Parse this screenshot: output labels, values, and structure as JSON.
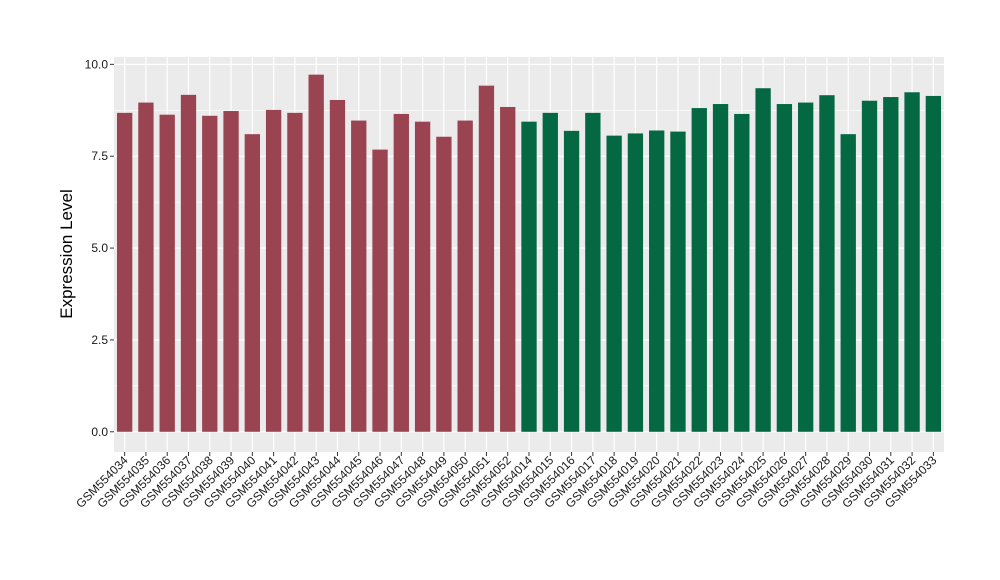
{
  "chart_data": {
    "type": "bar",
    "title": "",
    "xlabel": "",
    "ylabel": "Expression Level",
    "ylim": [
      -0.55,
      10.2
    ],
    "yticks": [
      0.0,
      2.5,
      5.0,
      7.5,
      10.0
    ],
    "ytick_labels": [
      "0.0",
      "2.5",
      "5.0",
      "7.5",
      "10.0"
    ],
    "grid": true,
    "legend": "none",
    "background_color": "#ebebeb",
    "grid_color": "#ffffff",
    "categories": [
      "GSM554034",
      "GSM554035",
      "GSM554036",
      "GSM554037",
      "GSM554038",
      "GSM554039",
      "GSM554040",
      "GSM554041",
      "GSM554042",
      "GSM554043",
      "GSM554044",
      "GSM554045",
      "GSM554046",
      "GSM554047",
      "GSM554048",
      "GSM554049",
      "GSM554050",
      "GSM554051",
      "GSM554052",
      "GSM554014",
      "GSM554015",
      "GSM554016",
      "GSM554017",
      "GSM554018",
      "GSM554019",
      "GSM554020",
      "GSM554021",
      "GSM554022",
      "GSM554023",
      "GSM554024",
      "GSM554025",
      "GSM554026",
      "GSM554027",
      "GSM554028",
      "GSM554029",
      "GSM554030",
      "GSM554031",
      "GSM554032",
      "GSM554033"
    ],
    "values": [
      8.68,
      8.96,
      8.63,
      9.17,
      8.6,
      8.73,
      8.1,
      8.76,
      8.68,
      9.72,
      9.03,
      8.47,
      7.68,
      8.65,
      8.44,
      8.03,
      8.47,
      9.42,
      8.84,
      8.44,
      8.68,
      8.19,
      8.68,
      8.06,
      8.12,
      8.2,
      8.17,
      8.81,
      8.92,
      8.65,
      9.35,
      8.92,
      8.96,
      9.16,
      8.1,
      9.01,
      9.11,
      9.24,
      9.14
    ],
    "bar_colors": [
      "#9b4451",
      "#9b4451",
      "#9b4451",
      "#9b4451",
      "#9b4451",
      "#9b4451",
      "#9b4451",
      "#9b4451",
      "#9b4451",
      "#9b4451",
      "#9b4451",
      "#9b4451",
      "#9b4451",
      "#9b4451",
      "#9b4451",
      "#9b4451",
      "#9b4451",
      "#9b4451",
      "#9b4451",
      "#046843",
      "#046843",
      "#046843",
      "#046843",
      "#046843",
      "#046843",
      "#046843",
      "#046843",
      "#046843",
      "#046843",
      "#046843",
      "#046843",
      "#046843",
      "#046843",
      "#046843",
      "#046843",
      "#046843",
      "#046843",
      "#046843",
      "#046843"
    ]
  }
}
